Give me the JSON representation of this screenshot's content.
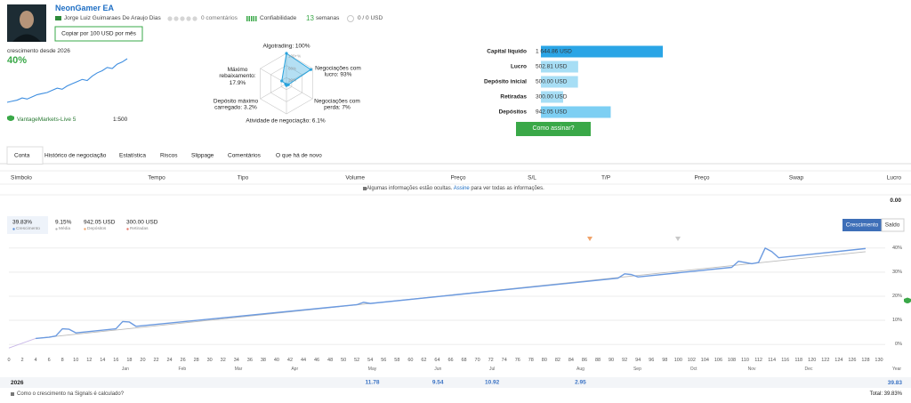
{
  "header": {
    "title": "NeonGamer EA",
    "author": "Jorge Luiz Guimaraes De Araujo Dias",
    "comments": "0 comentários",
    "reliability": "Confiabilidade",
    "weeks": "13",
    "weeks_unit": "semanas",
    "subscribers": "0 / 0 USD",
    "copy_button": "Copiar por 100 USD por mês"
  },
  "summary": {
    "growth_label": "crescimento desde 2026",
    "growth_value": "40%",
    "sparkline": [
      0,
      1,
      2,
      4,
      3,
      5,
      7,
      8,
      9,
      11,
      13,
      12,
      15,
      17,
      19,
      21,
      20,
      24,
      27,
      29,
      32,
      31,
      35,
      37,
      40
    ],
    "broker": "VantageMarkets-Live 5",
    "leverage": "1:500"
  },
  "radar": {
    "color": "#29a3dd",
    "rings": [
      {
        "value": 100,
        "label": "100+%"
      },
      {
        "value": 60,
        "label": "60%"
      },
      {
        "value": 20,
        "label": "20%"
      }
    ],
    "axes": [
      {
        "label": "Algotrading: 100%",
        "value": 100
      },
      {
        "label": "Negociações com lucro: 93%",
        "value": 93
      },
      {
        "label": "Negociações com perda: 7%",
        "value": 7
      },
      {
        "label": "Atividade de negociação: 6.1%",
        "value": 6.1
      },
      {
        "label": "Depósito máximo carregado: 3.2%",
        "value": 3.2
      },
      {
        "label": "Máximo rebaixamento: 17.9%",
        "value": 17.9
      }
    ]
  },
  "balance": {
    "rows": [
      {
        "label": "Capital líquido",
        "value": 1644.86,
        "value_label": "1 644.86 USD",
        "color": "#2aa5e6"
      },
      {
        "label": "Lucro",
        "value": 502.81,
        "value_label": "502.81 USD",
        "color": "#a7def5"
      },
      {
        "label": "Depósito inicial",
        "value": 500.0,
        "value_label": "500.00 USD",
        "color": "#a7def5"
      },
      {
        "label": "Retiradas",
        "value": 300.0,
        "value_label": "300.00 USD",
        "color": "#a7def5"
      },
      {
        "label": "Depósitos",
        "value": 942.05,
        "value_label": "942.05 USD",
        "color": "#7dcff3"
      }
    ],
    "button": "Como assinar?"
  },
  "tabs": {
    "items": [
      "Conta",
      "Histórico de negociação",
      "Estatística",
      "Riscos",
      "Slippage",
      "Comentários",
      "O que há de novo"
    ],
    "active": 0
  },
  "trades": {
    "columns": [
      "Símbolo",
      "Tempo",
      "Tipo",
      "Volume",
      "Preço",
      "S/L",
      "T/P",
      "Preço",
      "Swap",
      "Lucro"
    ],
    "notice_before": "Algumas informações estão ocultas.",
    "notice_link": "Assine",
    "notice_after": "para ver todas as informações.",
    "total": "0.00"
  },
  "growth": {
    "stats": [
      {
        "value": "39.83%",
        "label": "Crescimento",
        "color": "#5a8fd8"
      },
      {
        "value": "9.15%",
        "label": "Média",
        "color": "#b5b5b5"
      },
      {
        "value": "942.05 USD",
        "label": "Depósitos",
        "color": "#f0a36a"
      },
      {
        "value": "300.00 USD",
        "label": "Retiradas",
        "color": "#e7776a"
      }
    ],
    "toggle": [
      "Crescimento",
      "Saldo"
    ],
    "chart_data": {
      "type": "line",
      "xlim": [
        0,
        130
      ],
      "ylim": [
        -4,
        44
      ],
      "xticks": [
        0,
        2,
        4,
        6,
        8,
        10,
        12,
        14,
        16,
        18,
        20,
        22,
        24,
        26,
        28,
        30,
        32,
        34,
        36,
        38,
        40,
        42,
        44,
        46,
        48,
        50,
        52,
        54,
        56,
        58,
        60,
        62,
        64,
        66,
        68,
        70,
        72,
        74,
        76,
        78,
        80,
        82,
        84,
        86,
        88,
        90,
        92,
        94,
        96,
        98,
        100,
        102,
        104,
        106,
        108,
        110,
        112,
        114,
        116,
        118,
        120,
        122,
        124,
        126,
        128,
        130
      ],
      "month_ticks": [
        {
          "value": 17.4,
          "label": "Jan"
        },
        {
          "value": 25.9,
          "label": "Feb"
        },
        {
          "value": 34.3,
          "label": "Mar"
        },
        {
          "value": 42.7,
          "label": "Apr"
        },
        {
          "value": 54.3,
          "label": "May"
        },
        {
          "value": 64.1,
          "label": "Jun"
        },
        {
          "value": 72.2,
          "label": "Jul"
        },
        {
          "value": 85.4,
          "label": "Aug"
        },
        {
          "value": 93.9,
          "label": "Sep"
        },
        {
          "value": 102.3,
          "label": "Oct"
        },
        {
          "value": 111.0,
          "label": "Nov"
        },
        {
          "value": 119.5,
          "label": "Dec"
        }
      ],
      "year_label": "Year",
      "yticks": [
        {
          "value": 0,
          "label": "0%"
        },
        {
          "value": 10,
          "label": "10%"
        },
        {
          "value": 20,
          "label": "20%"
        },
        {
          "value": 30,
          "label": "30%"
        },
        {
          "value": 40,
          "label": "40%"
        }
      ],
      "grid": true,
      "series": [
        {
          "color": "#c9b8e8",
          "x": [
            0,
            4
          ],
          "values": [
            -1.5,
            2.5
          ]
        },
        {
          "color": "#bbbbbb",
          "x": [
            4,
            128
          ],
          "values": [
            2.5,
            38.5
          ]
        },
        {
          "color": "#6b9ae0",
          "x": [
            4,
            6,
            7,
            8,
            9,
            10,
            16,
            17,
            18,
            19,
            52,
            53,
            54,
            91,
            92,
            93,
            94,
            108,
            109,
            110,
            111,
            112,
            113,
            114,
            115,
            128
          ],
          "values": [
            2.5,
            3,
            3.5,
            6.5,
            6.3,
            4.8,
            6.5,
            9.5,
            9.3,
            7.5,
            16.5,
            17.5,
            17,
            27.5,
            29.3,
            29,
            28,
            32,
            34.5,
            34,
            33.5,
            34,
            40,
            38.5,
            36,
            39.8
          ]
        }
      ]
    },
    "yearly": {
      "year": "2026",
      "months": [
        null,
        null,
        null,
        null,
        11.78,
        9.54,
        10.92,
        2.95,
        null,
        null,
        null,
        null
      ],
      "year_value": 39.83,
      "total": "Total: 39.83%",
      "help": "Como o crescimento na Signals é calculado?"
    }
  }
}
